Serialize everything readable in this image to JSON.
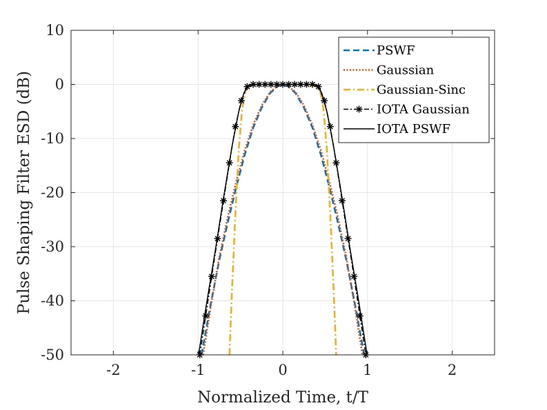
{
  "chart_data": {
    "type": "line",
    "xlabel": "Normalized Time, t/T",
    "ylabel": "Pulse Shaping Filter ESD (dB)",
    "xlim": [
      -2.5,
      2.5
    ],
    "ylim": [
      -50,
      10
    ],
    "xticks": [
      -2,
      -1,
      0,
      1,
      2
    ],
    "yticks": [
      10,
      0,
      -10,
      -20,
      -30,
      -40,
      -50
    ],
    "xtick_labels": [
      "-2",
      "-1",
      "0",
      "1",
      "2"
    ],
    "ytick_labels": [
      "10",
      "0",
      "-10",
      "-20",
      "-30",
      "-40",
      "-50"
    ],
    "grid": true,
    "legend_position": "top-right",
    "series": [
      {
        "name": "PSWF",
        "color": "#0072BD",
        "style": "dashed",
        "x": [
          -0.96,
          -0.85,
          -0.75,
          -0.65,
          -0.55,
          -0.45,
          -0.35,
          -0.25,
          -0.15,
          -0.05,
          0,
          0.05,
          0.15,
          0.25,
          0.35,
          0.45,
          0.55,
          0.65,
          0.75,
          0.85,
          0.96
        ],
        "y": [
          -50,
          -40.5,
          -32.5,
          -25.5,
          -19,
          -13,
          -8,
          -4.3,
          -1.6,
          -0.2,
          0,
          -0.2,
          -1.6,
          -4.3,
          -8,
          -13,
          -19,
          -25.5,
          -32.5,
          -40.5,
          -50
        ]
      },
      {
        "name": "Gaussian",
        "color": "#D95319",
        "style": "dotted",
        "x": [
          -0.94,
          -0.85,
          -0.75,
          -0.65,
          -0.55,
          -0.45,
          -0.35,
          -0.25,
          -0.15,
          -0.05,
          0,
          0.05,
          0.15,
          0.25,
          0.35,
          0.45,
          0.55,
          0.65,
          0.75,
          0.85,
          0.94
        ],
        "y": [
          -50,
          -41,
          -32,
          -24.5,
          -18,
          -12.2,
          -7.5,
          -3.9,
          -1.4,
          -0.15,
          0,
          -0.15,
          -1.4,
          -3.9,
          -7.5,
          -12.2,
          -18,
          -24.5,
          -32,
          -41,
          -50
        ]
      },
      {
        "name": "Gaussian-Sinc",
        "color": "#EDB120",
        "style": "dashdot",
        "x": [
          -0.63,
          -0.6,
          -0.56,
          -0.52,
          -0.48,
          -0.44,
          -0.4,
          -0.3,
          -0.2,
          -0.1,
          0,
          0.1,
          0.2,
          0.3,
          0.4,
          0.44,
          0.48,
          0.52,
          0.56,
          0.6,
          0.63
        ],
        "y": [
          -50,
          -38,
          -24,
          -12,
          -4.5,
          -1.2,
          -0.3,
          0,
          0,
          0,
          0,
          0,
          0,
          0,
          -0.3,
          -1.2,
          -4.5,
          -12,
          -24,
          -38,
          -50
        ]
      },
      {
        "name": "IOTA Gaussian",
        "color": "#000000",
        "style": "dashdot-star",
        "x": [
          -0.98,
          -0.91,
          -0.84,
          -0.77,
          -0.7,
          -0.63,
          -0.56,
          -0.49,
          -0.42,
          -0.35,
          -0.28,
          -0.21,
          -0.14,
          -0.07,
          0,
          0.07,
          0.14,
          0.21,
          0.28,
          0.35,
          0.42,
          0.49,
          0.56,
          0.63,
          0.7,
          0.77,
          0.84,
          0.91,
          0.98
        ],
        "y": [
          -50,
          -42.8,
          -35.5,
          -28.5,
          -21.5,
          -14.5,
          -7.8,
          -3,
          -0.4,
          0,
          0,
          0,
          0,
          0,
          0,
          0,
          0,
          0,
          0,
          0,
          -0.4,
          -3,
          -7.8,
          -14.5,
          -21.5,
          -28.5,
          -35.5,
          -42.8,
          -50
        ]
      },
      {
        "name": "IOTA PSWF",
        "color": "#000000",
        "style": "solid",
        "x": [
          -0.995,
          -0.9,
          -0.8,
          -0.7,
          -0.6,
          -0.52,
          -0.46,
          -0.42,
          -0.38,
          -0.3,
          -0.2,
          -0.1,
          0,
          0.1,
          0.2,
          0.3,
          0.38,
          0.42,
          0.46,
          0.52,
          0.6,
          0.7,
          0.8,
          0.9,
          0.995
        ],
        "y": [
          -50,
          -40.5,
          -31,
          -21,
          -11.5,
          -5,
          -1.6,
          -0.4,
          -0.05,
          0,
          0,
          0,
          0,
          0,
          0,
          0,
          -0.05,
          -0.4,
          -1.6,
          -5,
          -11.5,
          -21,
          -31,
          -40.5,
          -50
        ]
      }
    ]
  }
}
